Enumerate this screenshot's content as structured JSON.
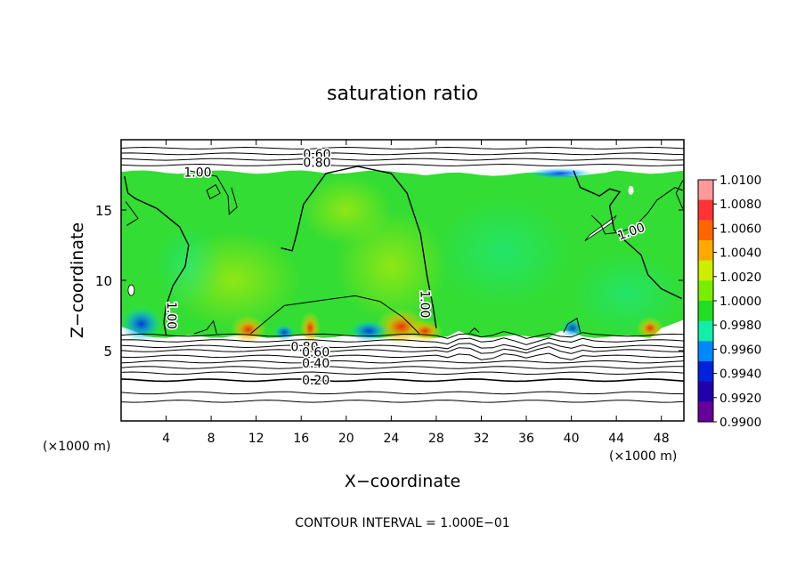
{
  "chart_data": {
    "type": "heatmap",
    "title": "saturation ratio",
    "xlabel": "X−coordinate",
    "ylabel": "Z−coordinate",
    "x_unit_left": "(×1000 m)",
    "x_unit_right": "(×1000 m)",
    "footer": "CONTOUR INTERVAL = 1.000E−01",
    "xlim": [
      0,
      50
    ],
    "ylim": [
      0,
      20
    ],
    "x_ticks": [
      4,
      8,
      12,
      16,
      20,
      24,
      28,
      32,
      36,
      40,
      44,
      48
    ],
    "x_tick_labels": [
      "4",
      "8",
      "12",
      "16",
      "20",
      "24",
      "28",
      "32",
      "36",
      "40",
      "44",
      "48"
    ],
    "y_ticks": [
      5,
      10,
      15
    ],
    "y_tick_labels": [
      "5",
      "10",
      "15"
    ],
    "colorbar": {
      "levels": [
        "1.0100",
        "1.0080",
        "1.0060",
        "1.0040",
        "1.0020",
        "1.0000",
        "0.9980",
        "0.9960",
        "0.9940",
        "0.9920",
        "0.9900"
      ],
      "colors": [
        "#ff9999",
        "#ff3333",
        "#ff6600",
        "#ffaa00",
        "#ccee00",
        "#77ee00",
        "#22dd22",
        "#11eeaa",
        "#0088ff",
        "#0022dd",
        "#2200aa",
        "#660099"
      ]
    },
    "background_color": "#33dd33",
    "contour_labels": [
      {
        "text": "0.60",
        "x": 17.4,
        "y": 19.0
      },
      {
        "text": "0.80",
        "x": 17.4,
        "y": 18.4
      },
      {
        "text": "1.00",
        "x": 6.8,
        "y": 17.7
      },
      {
        "text": "1.00",
        "x": 4.5,
        "y": 7.5
      },
      {
        "text": "1.00",
        "x": 27.0,
        "y": 8.3
      },
      {
        "text": "1.00",
        "x": 45.3,
        "y": 13.5
      },
      {
        "text": "0.80",
        "x": 16.3,
        "y": 5.3
      },
      {
        "text": "0.60",
        "x": 17.3,
        "y": 4.9
      },
      {
        "text": "0.40",
        "x": 17.3,
        "y": 4.1
      },
      {
        "text": "0.20",
        "x": 17.3,
        "y": 2.9
      }
    ]
  }
}
